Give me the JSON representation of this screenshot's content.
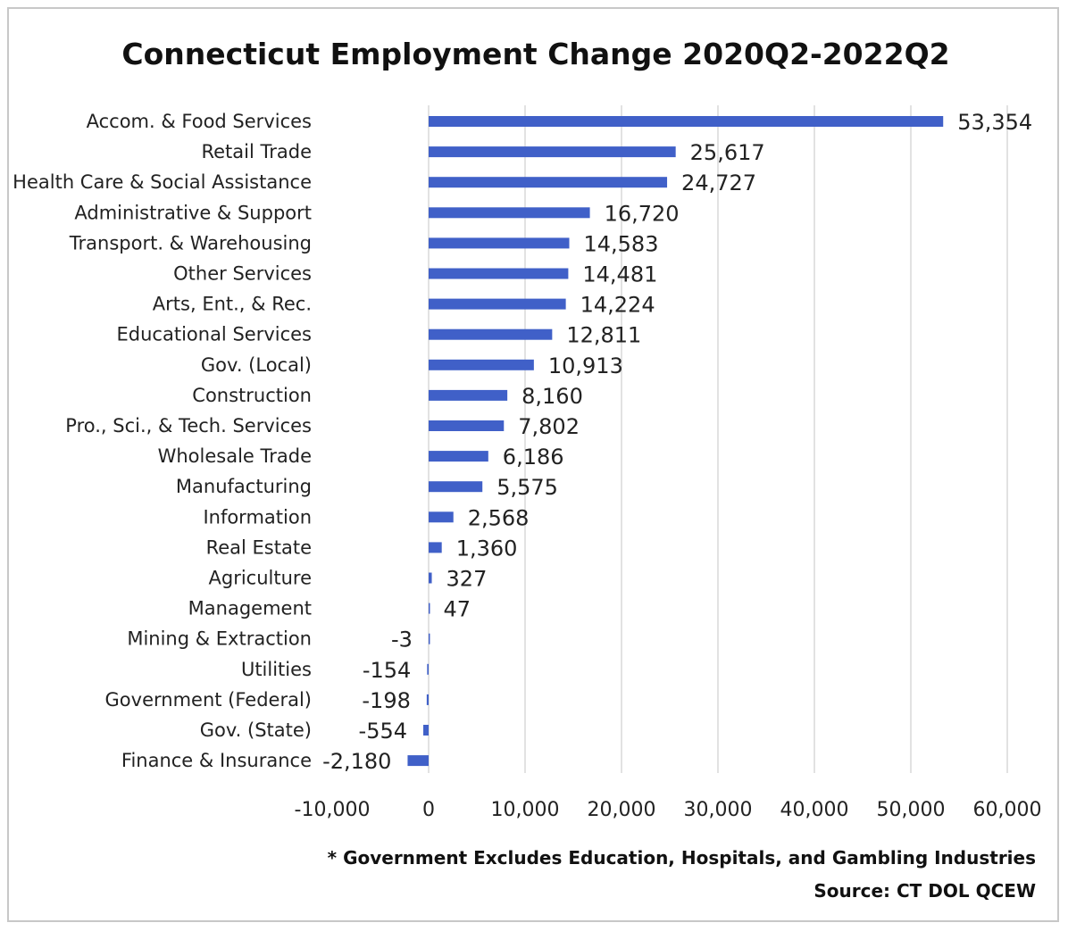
{
  "chart_data": {
    "type": "bar",
    "orientation": "horizontal",
    "title": "Connecticut Employment Change 2020Q2-2022Q2",
    "categories": [
      "Accom. & Food Services",
      "Retail Trade",
      "Health Care & Social Assistance",
      "Administrative & Support",
      "Transport. & Warehousing",
      "Other Services",
      "Arts, Ent., & Rec.",
      "Educational Services",
      "Gov. (Local)",
      "Construction",
      "Pro., Sci., & Tech. Services",
      "Wholesale Trade",
      "Manufacturing",
      "Information",
      "Real Estate",
      "Agriculture",
      "Management",
      "Mining & Extraction",
      "Utilities",
      "Government (Federal)",
      "Gov. (State)",
      "Finance & Insurance"
    ],
    "values": [
      53354,
      25617,
      24727,
      16720,
      14583,
      14481,
      14224,
      12811,
      10913,
      8160,
      7802,
      6186,
      5575,
      2568,
      1360,
      327,
      47,
      -3,
      -154,
      -198,
      -554,
      -2180
    ],
    "data_labels": [
      "53,354",
      "25,617",
      "24,727",
      "16,720",
      "14,583",
      "14,481",
      "14,224",
      "12,811",
      "10,913",
      "8,160",
      "7,802",
      "6,186",
      "5,575",
      "2,568",
      "1,360",
      "327",
      "47",
      "-3",
      "-154",
      "-198",
      "-554",
      "-2,180"
    ],
    "xlim": [
      -10000,
      60000
    ],
    "x_ticks": [
      -10000,
      0,
      10000,
      20000,
      30000,
      40000,
      50000,
      60000
    ],
    "x_tick_labels": [
      "-10,000",
      "0",
      "10,000",
      "20,000",
      "30,000",
      "40,000",
      "50,000",
      "60,000"
    ],
    "grid": true,
    "bar_color": "#4060c8",
    "gridline_color": "#d9d9d9",
    "footnote": "* Government Excludes Education, Hospitals, and Gambling Industries",
    "source": "Source: CT DOL QCEW"
  }
}
